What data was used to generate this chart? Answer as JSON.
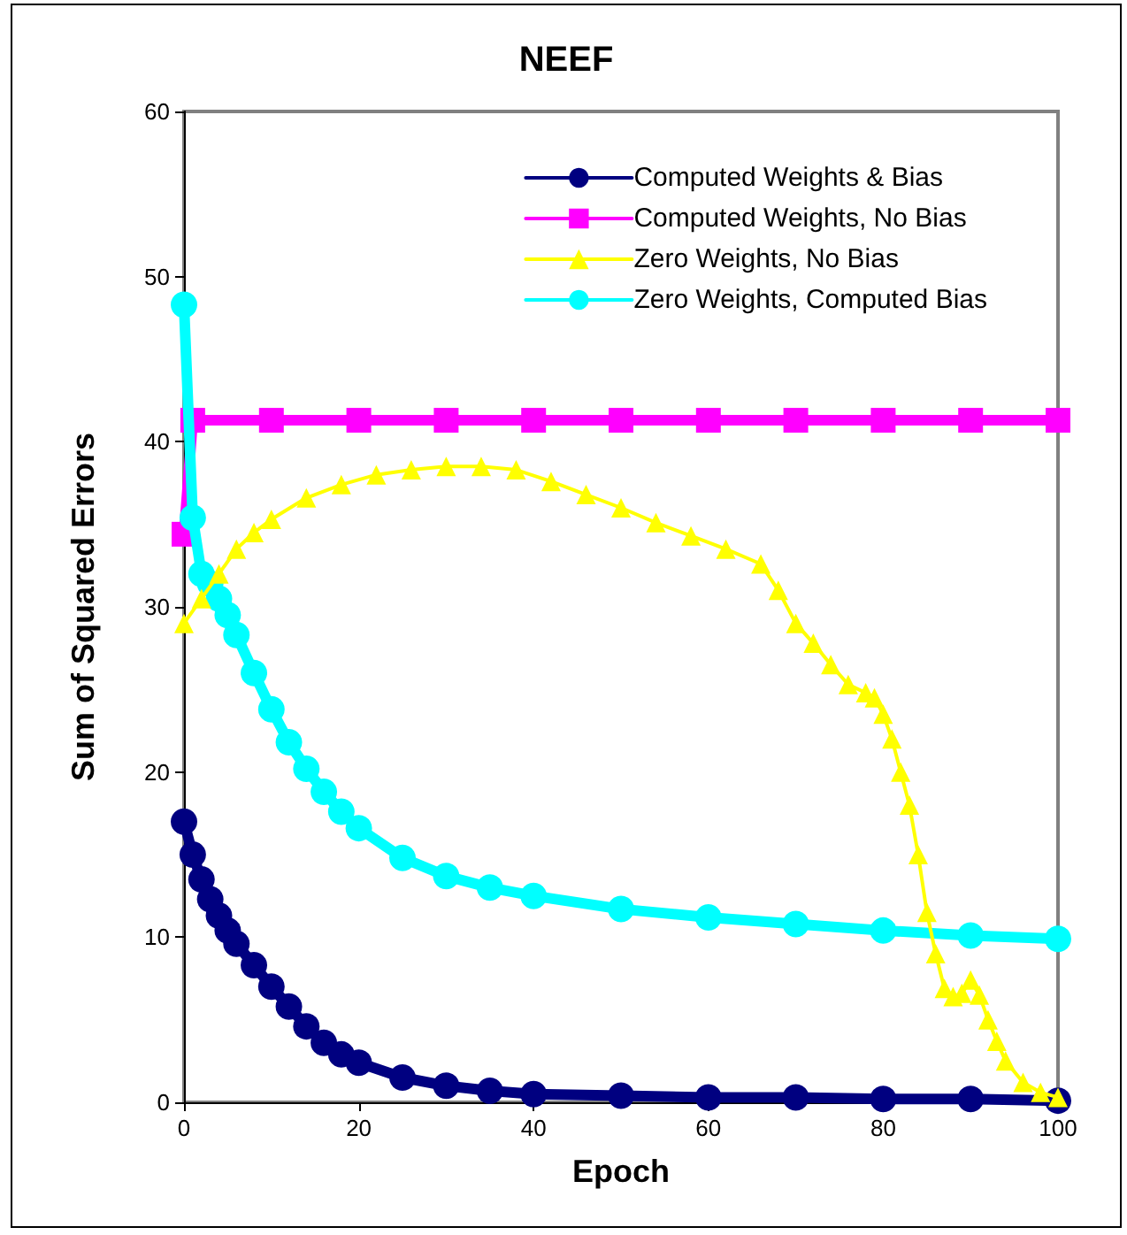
{
  "chart_data": {
    "type": "line",
    "title": "NEEF",
    "xlabel": "Epoch",
    "ylabel": "Sum of Squared Errors",
    "xlim": [
      0,
      100
    ],
    "xticks": [
      0,
      20,
      40,
      60,
      80,
      100
    ],
    "ylim": [
      0,
      60
    ],
    "yticks": [
      0,
      10,
      20,
      30,
      40,
      50,
      60
    ],
    "grid": false,
    "legend": "top right",
    "series": [
      {
        "name": "Computed Weights & Bias",
        "color": "#000080",
        "marker": "circle",
        "x": [
          0,
          1,
          2,
          3,
          4,
          5,
          6,
          8,
          10,
          12,
          14,
          16,
          18,
          20,
          25,
          30,
          35,
          40,
          50,
          60,
          70,
          80,
          90,
          100
        ],
        "values": [
          17,
          15,
          13.5,
          12.3,
          11.3,
          10.4,
          9.6,
          8.3,
          7,
          5.8,
          4.6,
          3.6,
          2.9,
          2.4,
          1.5,
          1,
          0.7,
          0.5,
          0.4,
          0.3,
          0.3,
          0.2,
          0.2,
          0.1
        ]
      },
      {
        "name": "Computed Weights, No Bias",
        "color": "#ff00ff",
        "marker": "square",
        "x": [
          0,
          1,
          10,
          20,
          30,
          40,
          50,
          60,
          70,
          80,
          90,
          100
        ],
        "values": [
          34.4,
          41.3,
          41.3,
          41.3,
          41.3,
          41.3,
          41.3,
          41.3,
          41.3,
          41.3,
          41.3,
          41.3
        ]
      },
      {
        "name": "Zero Weights, No Bias",
        "color": "#ffff00",
        "marker": "triangle",
        "x": [
          0,
          2,
          4,
          6,
          8,
          10,
          14,
          18,
          22,
          26,
          30,
          34,
          38,
          42,
          46,
          50,
          54,
          58,
          62,
          66,
          68,
          70,
          72,
          74,
          76,
          78,
          79,
          80,
          81,
          82,
          83,
          84,
          85,
          86,
          87,
          88,
          89,
          90,
          91,
          92,
          93,
          94,
          96,
          98,
          100
        ],
        "values": [
          29,
          30.5,
          32,
          33.5,
          34.5,
          35.3,
          36.6,
          37.4,
          38,
          38.3,
          38.5,
          38.5,
          38.3,
          37.6,
          36.8,
          36,
          35.1,
          34.3,
          33.5,
          32.6,
          31,
          29,
          27.8,
          26.5,
          25.3,
          24.8,
          24.5,
          23.5,
          22,
          20,
          18,
          15,
          11.5,
          9,
          6.9,
          6.4,
          6.6,
          7.4,
          6.5,
          5,
          3.7,
          2.5,
          1.2,
          0.6,
          0.3
        ]
      },
      {
        "name": "Zero Weights, Computed Bias",
        "color": "#00ffff",
        "marker": "circle",
        "x": [
          0,
          1,
          2,
          3,
          4,
          5,
          6,
          8,
          10,
          12,
          14,
          16,
          18,
          20,
          25,
          30,
          35,
          40,
          50,
          60,
          70,
          80,
          90,
          100
        ],
        "values": [
          48.3,
          35.4,
          32,
          31.4,
          30.5,
          29.5,
          28.3,
          26,
          23.8,
          21.8,
          20.2,
          18.8,
          17.6,
          16.6,
          14.8,
          13.7,
          13,
          12.5,
          11.7,
          11.2,
          10.8,
          10.4,
          10.1,
          9.9
        ]
      }
    ]
  }
}
